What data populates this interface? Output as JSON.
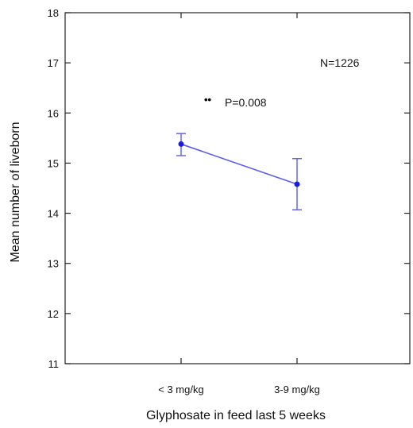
{
  "chart_data": {
    "type": "line",
    "title": "",
    "xlabel": "Glyphosate in feed  last 5 weeks",
    "ylabel": "Mean number of liveborn",
    "ylim": [
      11,
      18
    ],
    "yticks": [
      11,
      12,
      13,
      14,
      15,
      16,
      17,
      18
    ],
    "categories": [
      "< 3 mg/kg",
      "3-9 mg/kg"
    ],
    "series": [
      {
        "values": [
          15.38,
          14.58
        ],
        "error_low": [
          15.15,
          14.07
        ],
        "error_high": [
          15.59,
          15.09
        ],
        "color": "#5c5cf0",
        "marker_color": "#1a1ae0"
      }
    ],
    "grid": false,
    "annotations": {
      "n_label": "N=1226",
      "significance_marker": "••",
      "p_label": "P=0.008",
      "marker_color": "#1a1a1a"
    }
  }
}
